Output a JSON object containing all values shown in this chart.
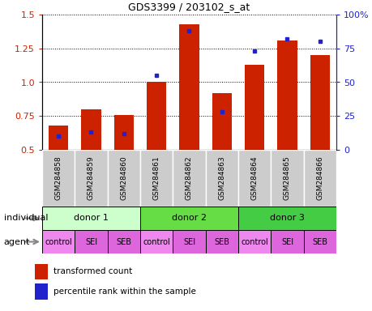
{
  "title": "GDS3399 / 203102_s_at",
  "samples": [
    "GSM284858",
    "GSM284859",
    "GSM284860",
    "GSM284861",
    "GSM284862",
    "GSM284863",
    "GSM284864",
    "GSM284865",
    "GSM284866"
  ],
  "transformed_count": [
    0.68,
    0.8,
    0.76,
    1.0,
    1.43,
    0.92,
    1.13,
    1.31,
    1.2
  ],
  "percentile_rank": [
    10,
    13,
    12,
    55,
    88,
    28,
    73,
    82,
    80
  ],
  "ylim_left": [
    0.5,
    1.5
  ],
  "ylim_right": [
    0,
    100
  ],
  "yticks_left": [
    0.5,
    0.75,
    1.0,
    1.25,
    1.5
  ],
  "yticks_right": [
    0,
    25,
    50,
    75,
    100
  ],
  "yticklabels_right": [
    "0",
    "25",
    "50",
    "75",
    "100%"
  ],
  "bar_color": "#cc2200",
  "dot_color": "#2222cc",
  "individual_labels": [
    "donor 1",
    "donor 2",
    "donor 3"
  ],
  "individual_colors": [
    "#ccffcc",
    "#66dd44",
    "#44cc44"
  ],
  "agent_labels": [
    "control",
    "SEI",
    "SEB",
    "control",
    "SEI",
    "SEB",
    "control",
    "SEI",
    "SEB"
  ],
  "agent_color_light": "#ee88ee",
  "agent_color_dark": "#dd66dd",
  "agent_color_control": "#ee88ee",
  "bg_color": "#cccccc",
  "legend_red": "transformed count",
  "legend_blue": "percentile rank within the sample",
  "figsize": [
    4.6,
    3.84
  ],
  "dpi": 100
}
